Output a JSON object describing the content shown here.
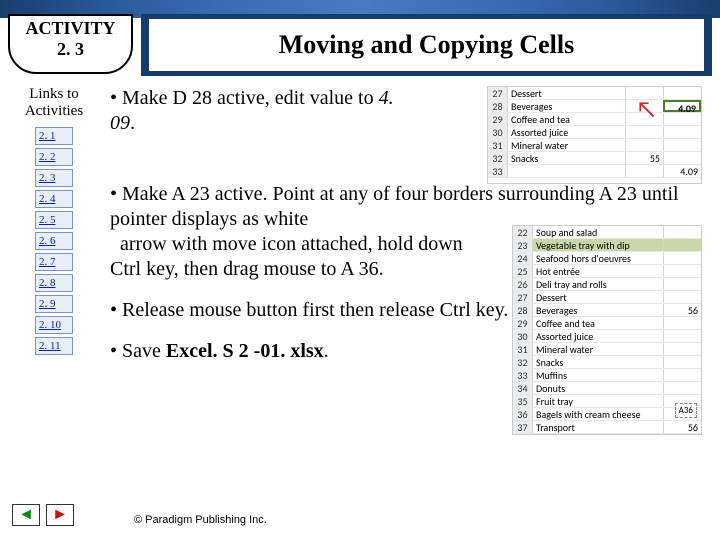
{
  "header": {
    "activity_label": "ACTIVITY",
    "activity_num": "2. 3",
    "title": "Moving and Copying Cells"
  },
  "sidebar": {
    "heading_l1": "Links to",
    "heading_l2": "Activities",
    "items": [
      "2. 1",
      "2. 2",
      "2. 3",
      "2. 4",
      "2. 5",
      "2. 6",
      "2. 7",
      "2. 8",
      "2. 9",
      "2. 10",
      "2. 11"
    ]
  },
  "content": {
    "b1_pre": "• Make D 28 active, edit value to ",
    "b1_val": "4. 09",
    "b1_post": ". ",
    "b2": "• Make A 23 active. Point at any of four borders surrounding A 23 until pointer displays as white arrow with move icon attached, hold down Ctrl key, then drag mouse to A 36.",
    "b3": "• Release mouse button first then release Ctrl key.",
    "b4_pre": "• Save ",
    "b4_file": "Excel. S 2 -01. xlsx",
    "b4_post": "."
  },
  "figure1": {
    "rows": [
      {
        "n": "27",
        "label": "Dessert",
        "v": ""
      },
      {
        "n": "28",
        "label": "Beverages",
        "v": "4.09"
      },
      {
        "n": "29",
        "label": "Coffee and tea",
        "v": ""
      },
      {
        "n": "30",
        "label": "Assorted juice",
        "v": ""
      },
      {
        "n": "31",
        "label": "Mineral water",
        "v": ""
      },
      {
        "n": "32",
        "label": "Snacks",
        "v": "55"
      },
      {
        "n": "33",
        "label": "",
        "v": "4.09"
      }
    ]
  },
  "figure2": {
    "rows": [
      {
        "n": "22",
        "label": "Soup and salad",
        "v": ""
      },
      {
        "n": "23",
        "label": "Vegetable tray with dip",
        "v": "",
        "sel": true
      },
      {
        "n": "24",
        "label": "Seafood hors d'oeuvres",
        "v": ""
      },
      {
        "n": "25",
        "label": "Hot entrée",
        "v": ""
      },
      {
        "n": "26",
        "label": "Deli tray and rolls",
        "v": ""
      },
      {
        "n": "27",
        "label": "Dessert",
        "v": ""
      },
      {
        "n": "28",
        "label": "Beverages",
        "v": "56"
      },
      {
        "n": "29",
        "label": "Coffee and tea",
        "v": ""
      },
      {
        "n": "30",
        "label": "Assorted juice",
        "v": ""
      },
      {
        "n": "31",
        "label": "Mineral water",
        "v": ""
      },
      {
        "n": "32",
        "label": "Snacks",
        "v": ""
      },
      {
        "n": "33",
        "label": "Muffins",
        "v": ""
      },
      {
        "n": "34",
        "label": "Donuts",
        "v": ""
      },
      {
        "n": "35",
        "label": "Fruit tray",
        "v": ""
      },
      {
        "n": "36",
        "label": "Bagels with cream cheese",
        "v": ""
      },
      {
        "n": "37",
        "label": "Transport",
        "v": "56"
      }
    ],
    "drag_label": "A36"
  },
  "footer": {
    "copyright": "© Paradigm Publishing Inc."
  },
  "colors": {
    "navy": "#163b6d",
    "link_bg": "#e8effb",
    "sel_bg": "#c9d8a8"
  }
}
